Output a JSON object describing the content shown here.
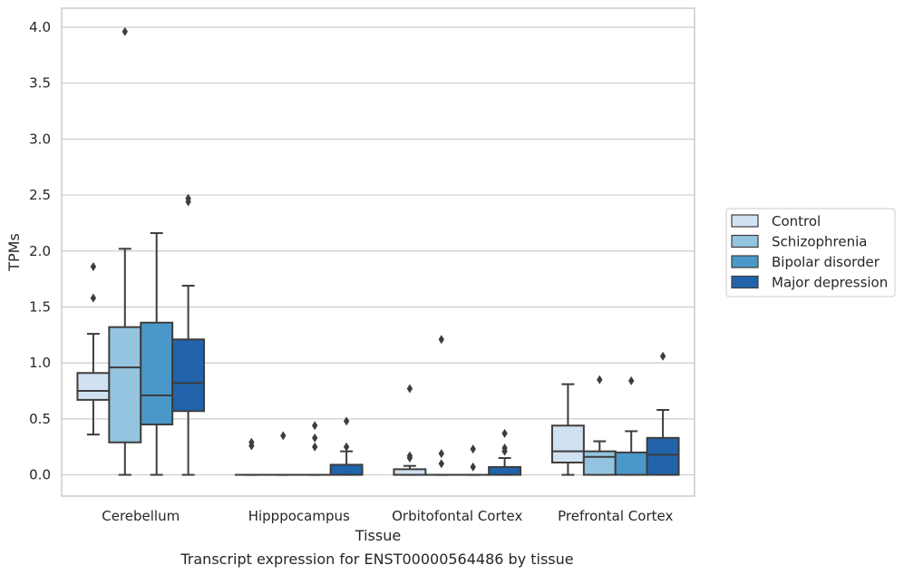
{
  "chart_data": {
    "type": "box",
    "title": "Transcript expression for ENST00000564486 by tissue",
    "xlabel": "Tissue",
    "ylabel": "TPMs",
    "ylim": [
      -0.19,
      4.17
    ],
    "yticks": [
      0.0,
      0.5,
      1.0,
      1.5,
      2.0,
      2.5,
      3.0,
      3.5,
      4.0
    ],
    "ytick_labels": [
      "0.0",
      "0.5",
      "1.0",
      "1.5",
      "2.0",
      "2.5",
      "3.0",
      "3.5",
      "4.0"
    ],
    "grid": "horizontal",
    "legend_position": "right",
    "categories": [
      "Cerebellum",
      "Hipppocampus",
      "Orbitofontal Cortex",
      "Prefrontal Cortex"
    ],
    "series": [
      {
        "name": "Control",
        "color": "#d0e1f2",
        "boxes": [
          {
            "whislo": 0.36,
            "q1": 0.67,
            "med": 0.75,
            "q3": 0.91,
            "whishi": 1.26,
            "fliers": [
              1.58,
              1.86
            ]
          },
          {
            "whislo": 0.0,
            "q1": 0.0,
            "med": 0.0,
            "q3": 0.0,
            "whishi": 0.0,
            "fliers": [
              0.26,
              0.29
            ]
          },
          {
            "whislo": 0.0,
            "q1": 0.0,
            "med": 0.0,
            "q3": 0.05,
            "whishi": 0.08,
            "fliers": [
              0.15,
              0.17,
              0.77
            ]
          },
          {
            "whislo": 0.0,
            "q1": 0.11,
            "med": 0.21,
            "q3": 0.44,
            "whishi": 0.81,
            "fliers": []
          }
        ]
      },
      {
        "name": "Schizophrenia",
        "color": "#94c4df",
        "boxes": [
          {
            "whislo": 0.0,
            "q1": 0.29,
            "med": 0.96,
            "q3": 1.32,
            "whishi": 2.02,
            "fliers": [
              3.96
            ]
          },
          {
            "whislo": 0.0,
            "q1": 0.0,
            "med": 0.0,
            "q3": 0.0,
            "whishi": 0.0,
            "fliers": [
              0.35
            ]
          },
          {
            "whislo": 0.0,
            "q1": 0.0,
            "med": 0.0,
            "q3": 0.0,
            "whishi": 0.0,
            "fliers": [
              0.1,
              0.19,
              1.21
            ]
          },
          {
            "whislo": 0.0,
            "q1": 0.0,
            "med": 0.16,
            "q3": 0.21,
            "whishi": 0.3,
            "fliers": [
              0.85
            ]
          }
        ]
      },
      {
        "name": "Bipolar disorder",
        "color": "#4a98c9",
        "boxes": [
          {
            "whislo": 0.0,
            "q1": 0.45,
            "med": 0.71,
            "q3": 1.36,
            "whishi": 2.16,
            "fliers": []
          },
          {
            "whislo": 0.0,
            "q1": 0.0,
            "med": 0.0,
            "q3": 0.0,
            "whishi": 0.0,
            "fliers": [
              0.25,
              0.33,
              0.44
            ]
          },
          {
            "whislo": 0.0,
            "q1": 0.0,
            "med": 0.0,
            "q3": 0.0,
            "whishi": 0.0,
            "fliers": [
              0.07,
              0.23
            ]
          },
          {
            "whislo": 0.0,
            "q1": 0.0,
            "med": 0.0,
            "q3": 0.2,
            "whishi": 0.39,
            "fliers": [
              0.84
            ]
          }
        ]
      },
      {
        "name": "Major depression",
        "color": "#2164ab",
        "boxes": [
          {
            "whislo": 0.0,
            "q1": 0.57,
            "med": 0.82,
            "q3": 1.21,
            "whishi": 1.69,
            "fliers": [
              2.44,
              2.47
            ]
          },
          {
            "whislo": 0.0,
            "q1": 0.0,
            "med": 0.0,
            "q3": 0.09,
            "whishi": 0.21,
            "fliers": [
              0.25,
              0.48
            ]
          },
          {
            "whislo": 0.0,
            "q1": 0.0,
            "med": 0.0,
            "q3": 0.07,
            "whishi": 0.15,
            "fliers": [
              0.21,
              0.24,
              0.37
            ]
          },
          {
            "whislo": 0.0,
            "q1": 0.0,
            "med": 0.18,
            "q3": 0.33,
            "whishi": 0.58,
            "fliers": [
              1.06
            ]
          }
        ]
      }
    ]
  }
}
